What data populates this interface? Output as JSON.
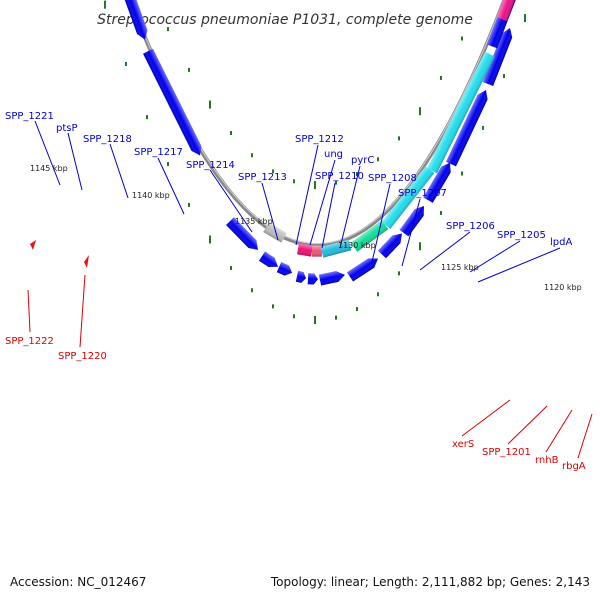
{
  "title": "Streptococcus pneumoniae P1031, complete genome",
  "footer": {
    "accession": "Accession: NC_012467",
    "summary": "Topology: linear; Length: 2,111,882 bp; Genes: 2,143"
  },
  "colors": {
    "forward_label": "#0000cc",
    "reverse_label": "#dd0000",
    "backbone": "#888888",
    "tick": "#227722"
  },
  "kbp_marks": [
    "1145 kbp",
    "1140 kbp",
    "1135 kbp",
    "1130 kbp",
    "1125 kbp",
    "1120 kbp"
  ],
  "forward_labels": [
    "SPP_1221",
    "ptsP",
    "SPP_1218",
    "SPP_1217",
    "SPP_1214",
    "SPP_1213",
    "SPP_1212",
    "ung",
    "SPP_1210",
    "pyrC",
    "SPP_1208",
    "SPP_1207",
    "SPP_1206",
    "SPP_1205",
    "lpdA"
  ],
  "reverse_labels": [
    "SPP_1222",
    "SPP_1220",
    "xerS",
    "SPP_1201",
    "rnhB",
    "rbgA"
  ]
}
